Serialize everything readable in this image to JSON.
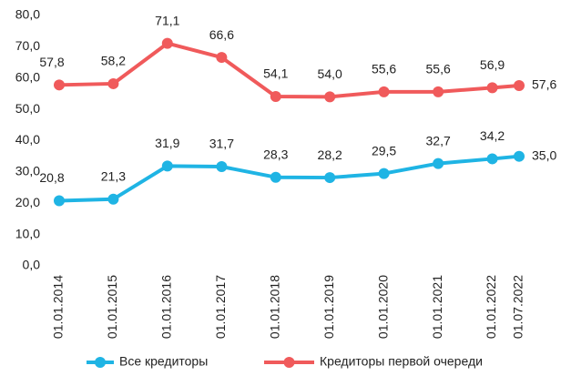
{
  "chart_data": {
    "type": "line",
    "x": [
      "01.01.2014",
      "01.01.2015",
      "01.01.2016",
      "01.01.2017",
      "01.01.2018",
      "01.01.2019",
      "01.01.2020",
      "01.01.2021",
      "01.01.2022",
      "01.07.2022"
    ],
    "series": [
      {
        "name": "Все кредиторы",
        "color": "#1fb4e4",
        "values": [
          20.8,
          21.3,
          31.9,
          31.7,
          28.3,
          28.2,
          29.5,
          32.7,
          34.2,
          35.0
        ],
        "value_labels": [
          "20,8",
          "21,3",
          "31,9",
          "31,7",
          "28,3",
          "28,2",
          "29,5",
          "32,7",
          "34,2",
          "35,0"
        ]
      },
      {
        "name": "Кредиторы первой очереди",
        "color": "#f05a5b",
        "values": [
          57.8,
          58.2,
          71.1,
          66.6,
          54.1,
          54.0,
          55.6,
          55.6,
          56.9,
          57.6
        ],
        "value_labels": [
          "57,8",
          "58,2",
          "71,1",
          "66,6",
          "54,1",
          "54,0",
          "55,6",
          "55,6",
          "56,9",
          "57,6"
        ]
      }
    ],
    "ylim": [
      0,
      80
    ],
    "yticks": [
      {
        "value": 0,
        "label": "0,0"
      },
      {
        "value": 10,
        "label": "10,0"
      },
      {
        "value": 20,
        "label": "20,0"
      },
      {
        "value": 30,
        "label": "30,0"
      },
      {
        "value": 40,
        "label": "40,0"
      },
      {
        "value": 50,
        "label": "50,0"
      },
      {
        "value": 60,
        "label": "60,0"
      },
      {
        "value": 70,
        "label": "70,0"
      },
      {
        "value": 80,
        "label": "80,0"
      }
    ],
    "grid": false,
    "legend": "bottom"
  }
}
